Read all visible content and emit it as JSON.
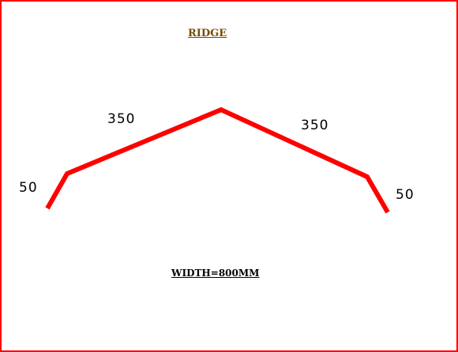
{
  "title": "RIDGE",
  "width_label": "WIDTH=800MM",
  "dimensions": {
    "top_left_segment": "350",
    "top_right_segment": "350",
    "left_flange": "50",
    "right_flange": "50"
  },
  "colors": {
    "profile_line": "#ff0000",
    "border": "#ff0000",
    "title": "#7a4a00",
    "text": "#000000"
  }
}
